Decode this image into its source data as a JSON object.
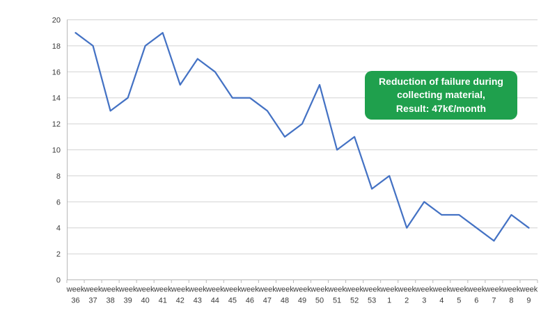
{
  "chart_data": {
    "type": "line",
    "x_label_prefix": "week",
    "categories": [
      "36",
      "37",
      "38",
      "39",
      "40",
      "41",
      "42",
      "43",
      "44",
      "45",
      "46",
      "47",
      "48",
      "49",
      "50",
      "51",
      "52",
      "53",
      "1",
      "2",
      "3",
      "4",
      "5",
      "6",
      "7",
      "8",
      "9"
    ],
    "values": [
      19,
      18,
      13,
      14,
      18,
      19,
      15,
      17,
      16,
      14,
      14,
      13,
      11,
      12,
      15,
      10,
      11,
      7,
      8,
      4,
      6,
      5,
      5,
      4,
      3,
      5,
      4
    ],
    "title": "",
    "xlabel": "",
    "ylabel": "",
    "ylim": [
      0,
      20
    ],
    "ytick_step": 2,
    "grid": true,
    "legend_position": "none",
    "line_color": "#4472C4",
    "gridline_color": "#D2D2D2",
    "axis_color": "#B8B8B8",
    "tick_label_color": "#3A3A3A"
  },
  "annotation": {
    "line1": "Reduction of failure during",
    "line2": "collecting material,",
    "line3": "Result: 47k€/month",
    "bg_color": "#1FA04D",
    "text_color": "#FFFFFF"
  }
}
